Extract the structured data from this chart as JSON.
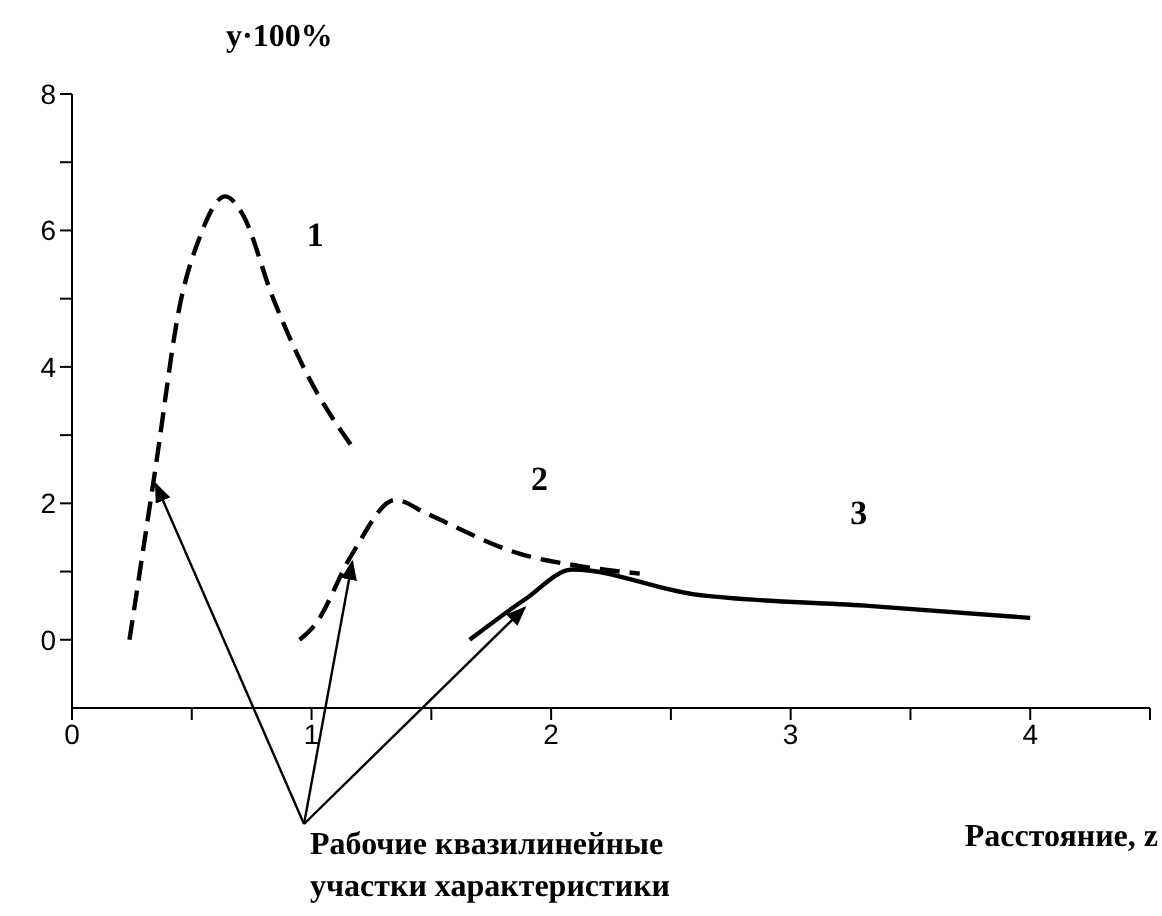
{
  "chart_data": {
    "type": "line",
    "ylabel": "y·100%",
    "xlabel": "Расстояние, z",
    "xlim": [
      0,
      4.5
    ],
    "ylim": [
      -1,
      8
    ],
    "xticks": [
      0,
      {
        "value": 0.5,
        "label": null
      },
      1,
      {
        "value": 1.5,
        "label": null
      },
      2,
      {
        "value": 2.5,
        "label": null
      },
      3,
      {
        "value": 3.5,
        "label": null
      },
      4,
      {
        "value": 4.5,
        "label": null
      }
    ],
    "yticks": [
      0,
      {
        "value": 1,
        "label": null
      },
      2,
      {
        "value": 3,
        "label": null
      },
      4,
      {
        "value": 5,
        "label": null
      },
      6,
      {
        "value": 7,
        "label": null
      },
      8
    ],
    "marker": "none",
    "series": [
      {
        "name": "1",
        "color": "#000000",
        "line_style": "dashed",
        "x": [
          0.24,
          0.35,
          0.45,
          0.53,
          0.64,
          0.71,
          0.84,
          0.98,
          1.18
        ],
        "values": [
          0,
          2.55,
          4.9,
          5.87,
          6.5,
          6.25,
          5.0,
          3.9,
          2.78
        ]
      },
      {
        "name": "2",
        "color": "#000000",
        "line_style": "dashed",
        "x": [
          0.95,
          1.01,
          1.17,
          1.35,
          1.48,
          1.87,
          2.12,
          2.37
        ],
        "values": [
          0,
          0.2,
          1.26,
          2.05,
          1.85,
          1.26,
          1.08,
          0.97
        ]
      },
      {
        "name": "3",
        "color": "#000000",
        "line_style": "solid",
        "x": [
          1.66,
          1.89,
          2.09,
          2.59,
          3.31,
          4.0
        ],
        "values": [
          0,
          0.59,
          1.03,
          0.67,
          0.5,
          0.32
        ]
      }
    ],
    "annotations": [
      {
        "text": "Рабочие квазилинейные участки характеристики",
        "x": 0.35,
        "y": 2.4
      }
    ]
  }
}
